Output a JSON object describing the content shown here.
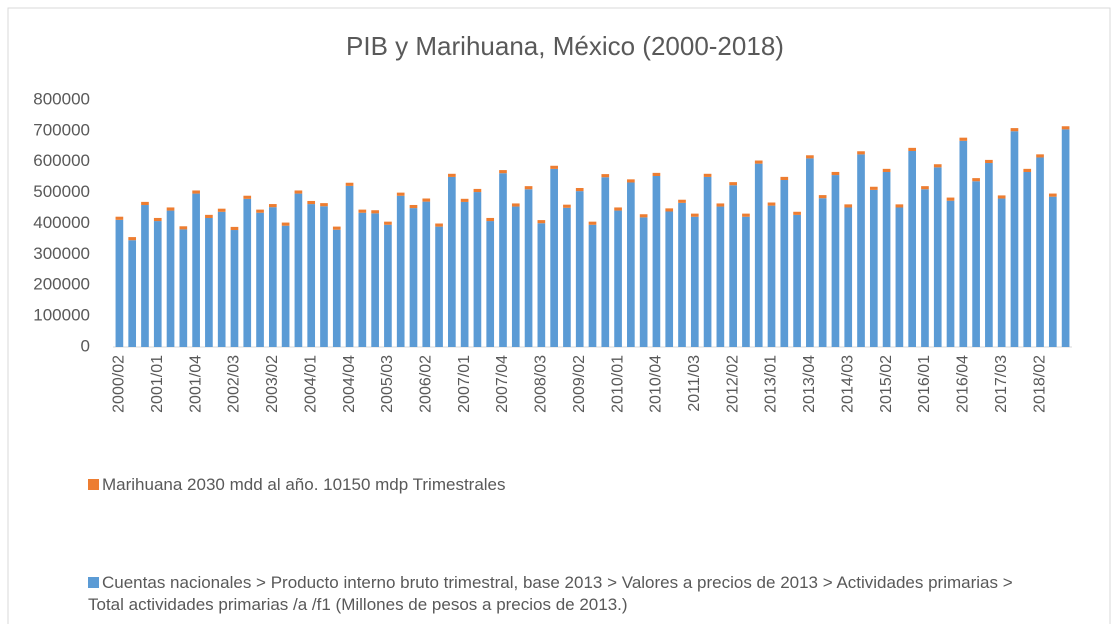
{
  "chart_data": {
    "type": "stacked_bar",
    "title": "PIB y Marihuana, México (2000-2018)",
    "categories": [
      "2000/02",
      null,
      null,
      "2001/01",
      null,
      null,
      "2001/04",
      null,
      null,
      "2002/03",
      null,
      null,
      "2003/02",
      null,
      null,
      "2004/01",
      null,
      null,
      "2004/04",
      null,
      null,
      "2005/03",
      null,
      null,
      "2006/02",
      null,
      null,
      "2007/01",
      null,
      null,
      "2007/04",
      null,
      null,
      "2008/03",
      null,
      null,
      "2009/02",
      null,
      null,
      "2010/01",
      null,
      null,
      "2010/04",
      null,
      null,
      "2011/03",
      null,
      null,
      "2012/02",
      null,
      null,
      "2013/01",
      null,
      null,
      "2013/04",
      null,
      null,
      "2014/03",
      null,
      null,
      "2015/02",
      null,
      null,
      "2016/01",
      null,
      null,
      "2016/04",
      null,
      null,
      "2017/03",
      null,
      null,
      "2018/02",
      null,
      null
    ],
    "series": [
      {
        "name": "Cuentas nacionales > Producto interno bruto trimestral, base 2013 > Valores a precios de 2013 > Actividades primarias > Total actividades primarias /a /f1 (Millones de pesos a precios de 2013.)",
        "color": "#5b9bd5",
        "values": [
          411850,
          345850,
          459850,
          407850,
          441850,
          380850,
          496850,
          417850,
          437850,
          378850,
          479850,
          434850,
          452850,
          392850,
          496850,
          462850,
          455850,
          379850,
          521850,
          434850,
          432850,
          395850,
          489850,
          449850,
          470850,
          389850,
          550850,
          469850,
          501850,
          407850,
          562850,
          454850,
          510850,
          400850,
          576850,
          450850,
          504850,
          395850,
          549850,
          441850,
          532850,
          419850,
          553850,
          438850,
          466850,
          421850,
          550850,
          454850,
          523850,
          421850,
          593850,
          457850,
          540850,
          427850,
          610850,
          481850,
          556850,
          451850,
          623850,
          508850,
          566850,
          451850,
          634850,
          510850,
          581850,
          473850,
          667850,
          536850,
          595850,
          480850,
          698850,
          566850,
          613850,
          486850,
          704850
        ]
      },
      {
        "name": "Marihuana 2030 mdd al año. 10150 mdp Trimestrales",
        "color": "#ed7d31",
        "values": [
          10150,
          10150,
          10150,
          10150,
          10150,
          10150,
          10150,
          10150,
          10150,
          10150,
          10150,
          10150,
          10150,
          10150,
          10150,
          10150,
          10150,
          10150,
          10150,
          10150,
          10150,
          10150,
          10150,
          10150,
          10150,
          10150,
          10150,
          10150,
          10150,
          10150,
          10150,
          10150,
          10150,
          10150,
          10150,
          10150,
          10150,
          10150,
          10150,
          10150,
          10150,
          10150,
          10150,
          10150,
          10150,
          10150,
          10150,
          10150,
          10150,
          10150,
          10150,
          10150,
          10150,
          10150,
          10150,
          10150,
          10150,
          10150,
          10150,
          10150,
          10150,
          10150,
          10150,
          10150,
          10150,
          10150,
          10150,
          10150,
          10150,
          10150,
          10150,
          10150,
          10150,
          10150,
          10150
        ]
      }
    ],
    "ylim": [
      0,
      800000
    ],
    "yticks": [
      0,
      100000,
      200000,
      300000,
      400000,
      500000,
      600000,
      700000,
      800000
    ],
    "grid": false
  }
}
